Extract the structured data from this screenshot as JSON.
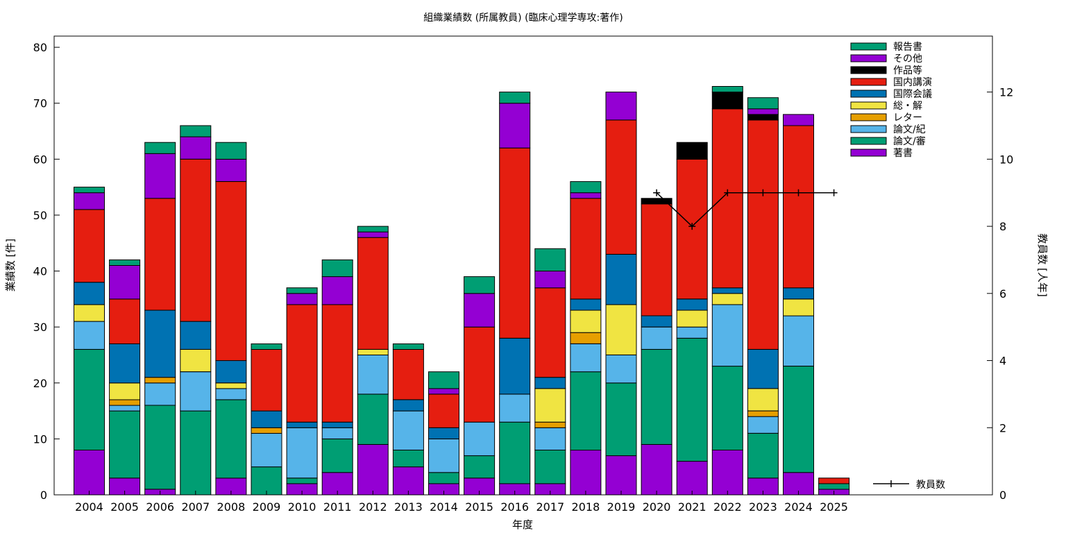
{
  "chart_data": {
    "type": "bar",
    "stacked": true,
    "title": "組織業績数 (所属教員) (臨床心理学専攻:著作)",
    "xlabel": "年度",
    "ylabel": "業績数 [件]",
    "y2label": "教員数 [人年]",
    "ylim": [
      0,
      82
    ],
    "y2lim": [
      0,
      13.667
    ],
    "yticks": [
      "0",
      "10",
      "20",
      "30",
      "40",
      "50",
      "60",
      "70",
      "80"
    ],
    "y2ticks": [
      "0",
      "2",
      "4",
      "6",
      "8",
      "10",
      "12"
    ],
    "legend_position": "top-right",
    "categories": [
      "2004",
      "2005",
      "2006",
      "2007",
      "2008",
      "2009",
      "2010",
      "2011",
      "2012",
      "2013",
      "2014",
      "2015",
      "2016",
      "2017",
      "2018",
      "2019",
      "2020",
      "2021",
      "2022",
      "2023",
      "2024",
      "2025"
    ],
    "series": [
      {
        "name": "著書",
        "color": "#9400d3",
        "values": [
          8,
          3,
          1,
          0,
          3,
          0,
          2,
          4,
          9,
          5,
          2,
          3,
          2,
          2,
          8,
          7,
          9,
          6,
          8,
          3,
          4,
          1
        ]
      },
      {
        "name": "論文/審",
        "color": "#009e73",
        "values": [
          18,
          12,
          15,
          15,
          14,
          5,
          1,
          6,
          9,
          3,
          2,
          4,
          11,
          6,
          14,
          13,
          17,
          22,
          15,
          8,
          19,
          1
        ]
      },
      {
        "name": "論文/紀",
        "color": "#56b4e9",
        "values": [
          5,
          1,
          4,
          7,
          2,
          6,
          9,
          2,
          7,
          7,
          6,
          6,
          5,
          4,
          5,
          5,
          4,
          2,
          11,
          3,
          9,
          0
        ]
      },
      {
        "name": "レター",
        "color": "#e69f00",
        "values": [
          0,
          1,
          1,
          0,
          0,
          1,
          0,
          0,
          0,
          0,
          0,
          0,
          0,
          1,
          2,
          0,
          0,
          0,
          0,
          1,
          0,
          0
        ]
      },
      {
        "name": "総・解",
        "color": "#f0e442",
        "values": [
          3,
          3,
          0,
          4,
          1,
          0,
          0,
          0,
          1,
          0,
          0,
          0,
          0,
          6,
          4,
          9,
          0,
          3,
          2,
          4,
          3,
          0
        ]
      },
      {
        "name": "国際会議",
        "color": "#0072b2",
        "values": [
          4,
          7,
          12,
          5,
          4,
          3,
          1,
          1,
          0,
          2,
          2,
          0,
          10,
          2,
          2,
          9,
          2,
          2,
          1,
          7,
          2,
          0
        ]
      },
      {
        "name": "国内講演",
        "color": "#e51e10",
        "values": [
          13,
          8,
          20,
          29,
          32,
          11,
          21,
          21,
          20,
          9,
          6,
          17,
          34,
          16,
          18,
          24,
          20,
          25,
          32,
          41,
          29,
          1
        ]
      },
      {
        "name": "作品等",
        "color": "#000000",
        "values": [
          0,
          0,
          0,
          0,
          0,
          0,
          0,
          0,
          0,
          0,
          0,
          0,
          0,
          0,
          0,
          0,
          1,
          3,
          3,
          1,
          0,
          0
        ]
      },
      {
        "name": "その他",
        "color": "#9400d3",
        "values": [
          3,
          6,
          8,
          4,
          4,
          0,
          2,
          5,
          1,
          0,
          1,
          6,
          8,
          3,
          1,
          5,
          0,
          0,
          0,
          1,
          2,
          0
        ]
      },
      {
        "name": "報告書",
        "color": "#009e73",
        "values": [
          1,
          1,
          2,
          2,
          3,
          1,
          1,
          3,
          1,
          1,
          3,
          3,
          2,
          4,
          2,
          0,
          0,
          0,
          1,
          2,
          0,
          0
        ]
      }
    ],
    "line": {
      "name": "教員数",
      "axis": "y2",
      "categories": [
        "2020",
        "2021",
        "2022",
        "2023",
        "2024",
        "2025"
      ],
      "values": [
        9,
        8,
        9,
        9,
        9,
        9
      ]
    }
  }
}
